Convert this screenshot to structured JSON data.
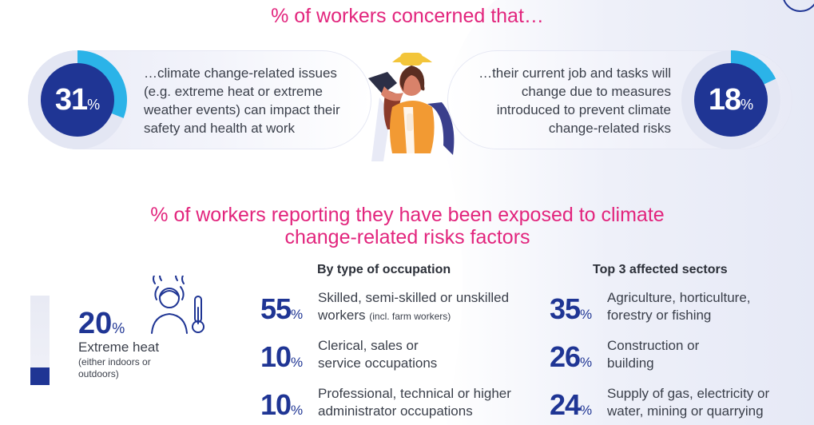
{
  "colors": {
    "headline": "#e2257d",
    "navy": "#1f3594",
    "accent": "#2bb3e8",
    "text": "#3a3f4a",
    "pill_bg": "#eceef8"
  },
  "top": {
    "headline": "% of workers concerned that…",
    "left": {
      "value": "31",
      "unit": "%",
      "fraction": 0.31,
      "text": "…climate change-related issues (e.g. extreme heat or extreme weather events) can impact their safety and health at work"
    },
    "right": {
      "value": "18",
      "unit": "%",
      "fraction": 0.18,
      "text": "…their current job and tasks will change due to measures introduced to prevent climate change-related risks"
    },
    "illustration": "worker-with-hat-wiping-face-icon"
  },
  "exposure": {
    "headline": "% of workers reporting they have been exposed to climate change-related risks factors",
    "heat": {
      "value": "20",
      "unit": "%",
      "fraction": 0.2,
      "label": "Extreme heat",
      "sublabel": "(either indoors or outdoors)",
      "icon": "hot-person-thermometer-icon"
    },
    "occupation": {
      "title": "By type of occupation",
      "rows": [
        {
          "value": "55",
          "unit": "%",
          "text": "Skilled, semi-skilled or unskilled",
          "text2": "workers",
          "note": "(incl. farm workers)"
        },
        {
          "value": "10",
          "unit": "%",
          "text": "Clerical, sales or",
          "text2": "service occupations",
          "note": ""
        },
        {
          "value": "10",
          "unit": "%",
          "text": "Professional, technical or higher",
          "text2": "administrator occupations",
          "note": ""
        }
      ]
    },
    "sectors": {
      "title": "Top 3 affected sectors",
      "rows": [
        {
          "value": "35",
          "unit": "%",
          "text": "Agriculture, horticulture,",
          "text2": "forestry or fishing"
        },
        {
          "value": "26",
          "unit": "%",
          "text": "Construction or",
          "text2": "building"
        },
        {
          "value": "24",
          "unit": "%",
          "text": "Supply of gas, electricity or",
          "text2": "water, mining or quarrying"
        }
      ]
    }
  }
}
